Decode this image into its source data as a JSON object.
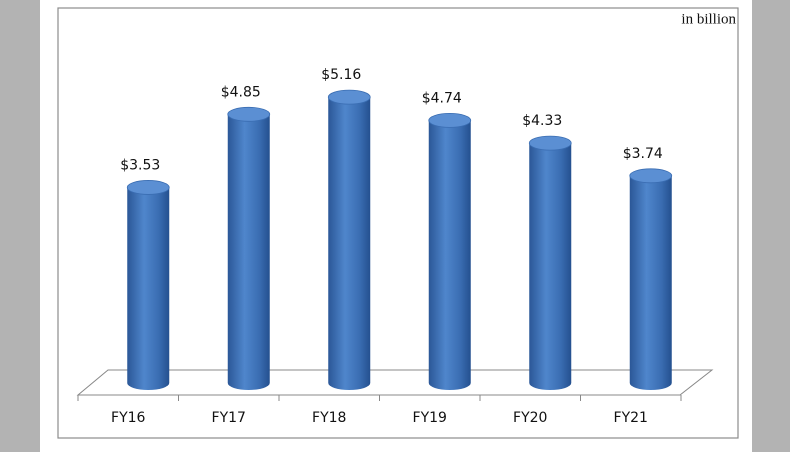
{
  "chart_data": {
    "type": "bar",
    "annotation": "in billion",
    "categories": [
      "FY16",
      "FY17",
      "FY18",
      "FY19",
      "FY20",
      "FY21"
    ],
    "values": [
      3.53,
      4.85,
      5.16,
      4.74,
      4.33,
      3.74
    ],
    "value_labels": [
      "$3.53",
      "$4.85",
      "$5.16",
      "$4.74",
      "$4.33",
      "$3.74"
    ],
    "color": "#3f74b8"
  }
}
